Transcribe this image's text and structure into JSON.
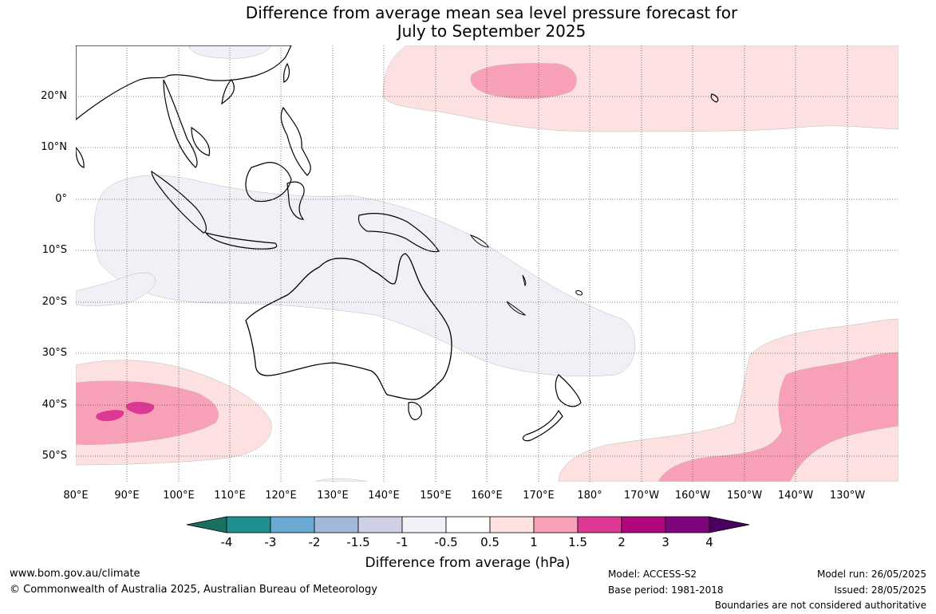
{
  "title_line1": "Difference from average mean sea level pressure forecast for",
  "title_line2": "July to September 2025",
  "lat_labels": [
    "20°N",
    "10°N",
    "0°",
    "10°S",
    "20°S",
    "30°S",
    "40°S",
    "50°S"
  ],
  "lon_labels": [
    "80°E",
    "90°E",
    "100°E",
    "110°E",
    "120°E",
    "130°E",
    "140°E",
    "150°E",
    "160°E",
    "170°E",
    "180°",
    "170°W",
    "160°W",
    "150°W",
    "140°W",
    "130°W"
  ],
  "colorbar": {
    "title": "Difference from average (hPa)",
    "ticks": [
      "-4",
      "-3",
      "-2",
      "-1.5",
      "-1",
      "-0.5",
      "0.5",
      "1",
      "1.5",
      "2",
      "3",
      "4"
    ],
    "colors": [
      "#1a7060",
      "#1e9090",
      "#6aaad2",
      "#a4b8da",
      "#cfd0e6",
      "#f2eff6",
      "#ffffff",
      "#fde0e0",
      "#f8a0b8",
      "#dc3894",
      "#b0087c",
      "#7e067c",
      "#4a0060"
    ]
  },
  "colors": {
    "anomaly_light_positive": "#fde0e0",
    "anomaly_mid_positive": "#f8a0b8",
    "anomaly_strong_positive": "#dc3894",
    "anomaly_light_negative": "#f2eff6",
    "coastline": "#000000",
    "gridline": "#555555"
  },
  "footer": {
    "website": "www.bom.gov.au/climate",
    "copyright": "© Commonwealth of Australia 2025, Australian Bureau of Meteorology",
    "model": "Model: ACCESS-S2",
    "base_period": "Base period: 1981-2018",
    "model_run": "Model run: 26/05/2025",
    "issued": "Issued: 28/05/2025",
    "disclaimer": "Boundaries are not considered authoritative"
  }
}
